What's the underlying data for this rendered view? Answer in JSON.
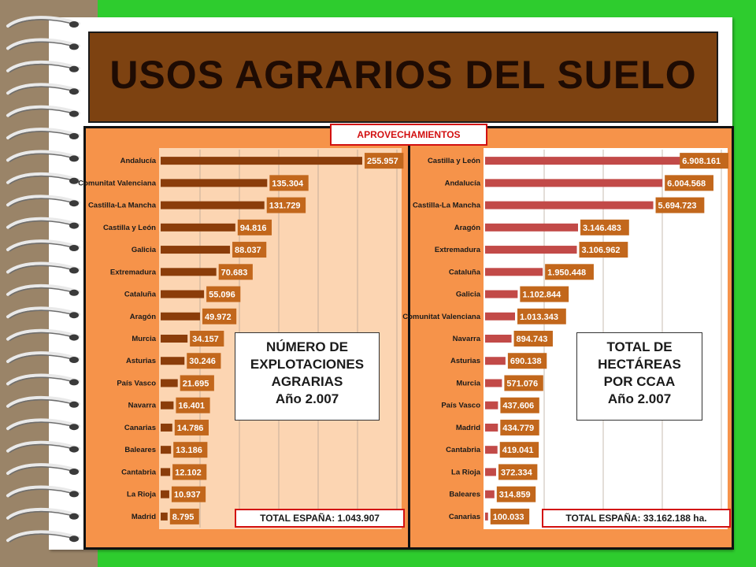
{
  "title": "USOS AGRARIOS DEL SUELO",
  "section_tag": "APROVECHAMIENTOS",
  "colors": {
    "left_bar": "#8b3d0a",
    "right_bar": "#c24a48",
    "label_bg": "#c2671c",
    "panel": "#f6934a"
  },
  "left_legend": [
    "NÚMERO DE",
    "EXPLOTACIONES",
    "AGRARIAS",
    "Año 2.007"
  ],
  "left_total": "TOTAL ESPAÑA: 1.043.907",
  "right_legend": [
    "TOTAL DE",
    "HECTÁREAS",
    "POR CCAA",
    "Año 2.007"
  ],
  "right_total": "TOTAL ESPAÑA: 33.162.188 ha.",
  "chart_data": [
    {
      "type": "bar",
      "orientation": "horizontal",
      "title": "NÚMERO DE EXPLOTACIONES AGRARIAS Año 2.007",
      "categories": [
        "Andalucía",
        "Comunitat Valenciana",
        "Castilla-La Mancha",
        "Castilla y León",
        "Galicia",
        "Extremadura",
        "Cataluña",
        "Aragón",
        "Murcia",
        "Asturias",
        "País Vasco",
        "Navarra",
        "Canarias",
        "Baleares",
        "Cantabria",
        "La Rioja",
        "Madrid"
      ],
      "values": [
        255957,
        135304,
        131729,
        94816,
        88037,
        70683,
        55096,
        49972,
        34157,
        30246,
        21695,
        16401,
        14786,
        13186,
        12102,
        10937,
        8795
      ],
      "value_labels": [
        "255.957",
        "135.304",
        "131.729",
        "94.816",
        "88.037",
        "70.683",
        "55.096",
        "49.972",
        "34.157",
        "30.246",
        "21.695",
        "16.401",
        "14.786",
        "13.186",
        "12.102",
        "10.937",
        "8.795"
      ],
      "xlim": [
        0,
        300000
      ],
      "grid": true
    },
    {
      "type": "bar",
      "orientation": "horizontal",
      "title": "TOTAL DE HECTÁREAS POR CCAA Año 2.007",
      "categories": [
        "Castilla y León",
        "Andalucía",
        "Castilla-La Mancha",
        "Aragón",
        "Extremadura",
        "Cataluña",
        "Galicia",
        "Comunitat Valenciana",
        "Navarra",
        "Asturias",
        "Murcia",
        "País Vasco",
        "Madrid",
        "Cantabria",
        "La Rioja",
        "Baleares",
        "Canarias"
      ],
      "values": [
        6908161,
        6004568,
        5694723,
        3146483,
        3106962,
        1950448,
        1102844,
        1013343,
        894743,
        690138,
        571076,
        437606,
        434779,
        419041,
        372334,
        314859,
        100033
      ],
      "value_labels": [
        "6.908.161",
        "6.004.568",
        "5.694.723",
        "3.146.483",
        "3.106.962",
        "1.950.448",
        "1.102.844",
        "1.013.343",
        "894.743",
        "690.138",
        "571.076",
        "437.606",
        "434.779",
        "419.041",
        "372.334",
        "314.859",
        "100.033"
      ],
      "xlim": [
        0,
        8000000
      ],
      "grid": true
    }
  ]
}
